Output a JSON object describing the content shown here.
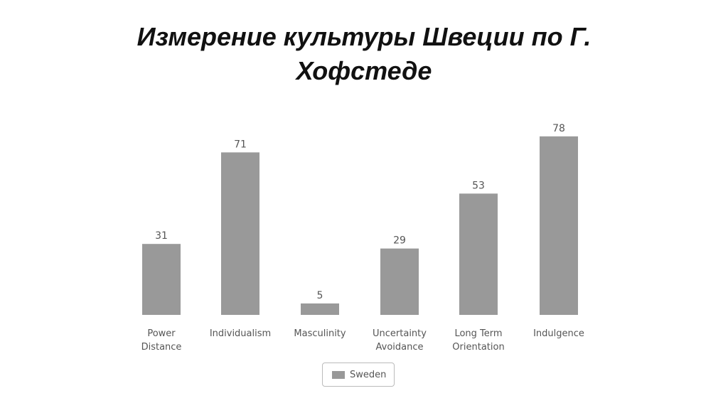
{
  "title": "Измерение культуры Швеции по Г. Хофстеде",
  "colors": {
    "bar": "#999999",
    "label_text": "#555555",
    "title_text": "#111111"
  },
  "chart_data": {
    "type": "bar",
    "title": "Измерение культуры Швеции по Г. Хофстеде",
    "xlabel": "",
    "ylabel": "",
    "ylim": [
      0,
      100
    ],
    "grid": false,
    "legend_position": "bottom",
    "categories": [
      [
        "Power",
        "Distance"
      ],
      [
        "Individualism"
      ],
      [
        "Masculinity"
      ],
      [
        "Uncertainty",
        "Avoidance"
      ],
      [
        "Long Term",
        "Orientation"
      ],
      [
        "Indulgence"
      ]
    ],
    "series": [
      {
        "name": "Sweden",
        "color": "#999999",
        "values": [
          31,
          71,
          5,
          29,
          53,
          78
        ]
      }
    ]
  }
}
